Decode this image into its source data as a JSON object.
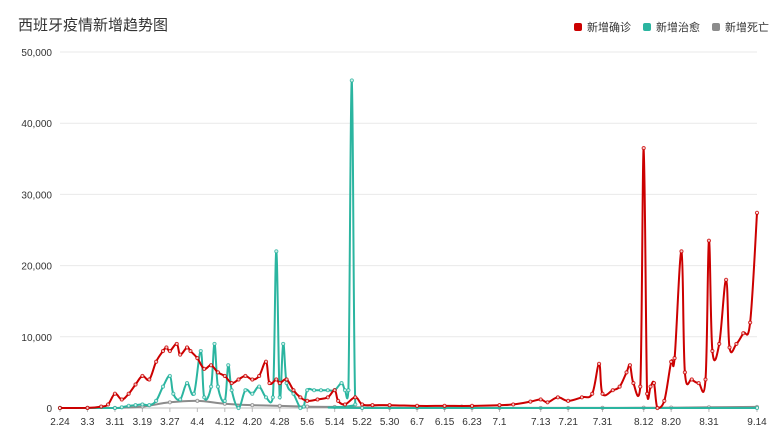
{
  "chart_data": {
    "type": "line",
    "title": "西班牙疫情新增趋势图",
    "xlabel": "",
    "ylabel": "",
    "ylim": [
      0,
      50000
    ],
    "yticks": [
      "0",
      "10,000",
      "20,000",
      "30,000",
      "40,000",
      "50,000"
    ],
    "ytick_values": [
      0,
      10000,
      20000,
      30000,
      40000,
      50000
    ],
    "xtick_labels": [
      "2.24",
      "3.3",
      "3.11",
      "3.19",
      "3.27",
      "4.4",
      "4.12",
      "4.20",
      "4.28",
      "5.6",
      "5.14",
      "5.22",
      "5.30",
      "6.7",
      "6.15",
      "6.23",
      "7.1",
      "7.13",
      "7.21",
      "7.31",
      "8.12",
      "8.20",
      "8.31",
      "9.14"
    ],
    "grid": true,
    "legend_position": "top-right",
    "series": [
      {
        "name": "新增确诊",
        "color": "#cc0000",
        "points": [
          [
            "2.24",
            0
          ],
          [
            "3.3",
            20
          ],
          [
            "3.7",
            200
          ],
          [
            "3.9",
            500
          ],
          [
            "3.11",
            2000
          ],
          [
            "3.13",
            1200
          ],
          [
            "3.15",
            2000
          ],
          [
            "3.17",
            3300
          ],
          [
            "3.19",
            4500
          ],
          [
            "3.21",
            4000
          ],
          [
            "3.23",
            6500
          ],
          [
            "3.25",
            8000
          ],
          [
            "3.26",
            8500
          ],
          [
            "3.27",
            8000
          ],
          [
            "3.29",
            9000
          ],
          [
            "3.30",
            7500
          ],
          [
            "4.1",
            8500
          ],
          [
            "4.2",
            8000
          ],
          [
            "4.4",
            7000
          ],
          [
            "4.6",
            5500
          ],
          [
            "4.8",
            6000
          ],
          [
            "4.10",
            5000
          ],
          [
            "4.12",
            4500
          ],
          [
            "4.14",
            3500
          ],
          [
            "4.16",
            4000
          ],
          [
            "4.18",
            4500
          ],
          [
            "4.20",
            4000
          ],
          [
            "4.22",
            4500
          ],
          [
            "4.24",
            6500
          ],
          [
            "4.25",
            3500
          ],
          [
            "4.27",
            4000
          ],
          [
            "4.28",
            3500
          ],
          [
            "4.30",
            4000
          ],
          [
            "5.2",
            2500
          ],
          [
            "5.4",
            1500
          ],
          [
            "5.6",
            1000
          ],
          [
            "5.9",
            1200
          ],
          [
            "5.12",
            1500
          ],
          [
            "5.14",
            2500
          ],
          [
            "5.15",
            1000
          ],
          [
            "5.17",
            500
          ],
          [
            "5.20",
            1500
          ],
          [
            "5.22",
            500
          ],
          [
            "5.25",
            400
          ],
          [
            "5.30",
            400
          ],
          [
            "6.7",
            300
          ],
          [
            "6.15",
            300
          ],
          [
            "6.23",
            300
          ],
          [
            "7.1",
            400
          ],
          [
            "7.5",
            500
          ],
          [
            "7.10",
            900
          ],
          [
            "7.13",
            1200
          ],
          [
            "7.15",
            800
          ],
          [
            "7.18",
            1500
          ],
          [
            "7.21",
            1000
          ],
          [
            "7.25",
            1500
          ],
          [
            "7.28",
            2000
          ],
          [
            "7.30",
            6200
          ],
          [
            "7.31",
            2000
          ],
          [
            "8.3",
            2500
          ],
          [
            "8.5",
            3000
          ],
          [
            "8.7",
            5000
          ],
          [
            "8.8",
            6000
          ],
          [
            "8.9",
            3500
          ],
          [
            "8.11",
            3000
          ],
          [
            "8.12",
            36500
          ],
          [
            "8.13",
            2000
          ],
          [
            "8.14",
            3000
          ],
          [
            "8.15",
            3500
          ],
          [
            "8.16",
            0
          ],
          [
            "8.18",
            1000
          ],
          [
            "8.20",
            6500
          ],
          [
            "8.21",
            7000
          ],
          [
            "8.23",
            22000
          ],
          [
            "8.24",
            5000
          ],
          [
            "8.26",
            4000
          ],
          [
            "8.28",
            3500
          ],
          [
            "8.30",
            4000
          ],
          [
            "8.31",
            23500
          ],
          [
            "9.1",
            8000
          ],
          [
            "9.3",
            9000
          ],
          [
            "9.5",
            18000
          ],
          [
            "9.6",
            8500
          ],
          [
            "9.8",
            9000
          ],
          [
            "9.10",
            10500
          ],
          [
            "9.12",
            12000
          ],
          [
            "9.14",
            27400
          ]
        ]
      },
      {
        "name": "新增治愈",
        "color": "#2bb5a0",
        "points": [
          [
            "2.24",
            0
          ],
          [
            "3.11",
            0
          ],
          [
            "3.13",
            100
          ],
          [
            "3.15",
            300
          ],
          [
            "3.17",
            400
          ],
          [
            "3.19",
            500
          ],
          [
            "3.21",
            400
          ],
          [
            "3.23",
            1000
          ],
          [
            "3.25",
            3000
          ],
          [
            "3.27",
            4500
          ],
          [
            "3.28",
            2000
          ],
          [
            "3.30",
            1200
          ],
          [
            "4.1",
            3500
          ],
          [
            "4.3",
            2000
          ],
          [
            "4.5",
            8000
          ],
          [
            "4.6",
            1500
          ],
          [
            "4.8",
            3000
          ],
          [
            "4.9",
            9000
          ],
          [
            "4.10",
            3000
          ],
          [
            "4.12",
            1000
          ],
          [
            "4.13",
            6000
          ],
          [
            "4.14",
            2500
          ],
          [
            "4.16",
            0
          ],
          [
            "4.18",
            2500
          ],
          [
            "4.20",
            2000
          ],
          [
            "4.22",
            3000
          ],
          [
            "4.24",
            1500
          ],
          [
            "4.26",
            1500
          ],
          [
            "4.27",
            22000
          ],
          [
            "4.28",
            1500
          ],
          [
            "4.29",
            9000
          ],
          [
            "4.30",
            3500
          ],
          [
            "5.2",
            2000
          ],
          [
            "5.4",
            0
          ],
          [
            "5.5",
            200
          ],
          [
            "5.6",
            2500
          ],
          [
            "5.8",
            2500
          ],
          [
            "5.10",
            2500
          ],
          [
            "5.12",
            2500
          ],
          [
            "5.14",
            2500
          ],
          [
            "5.16",
            3500
          ],
          [
            "5.17",
            2500
          ],
          [
            "5.18",
            2500
          ],
          [
            "5.19",
            46000
          ],
          [
            "5.20",
            500
          ],
          [
            "5.22",
            0
          ],
          [
            "9.14",
            0
          ]
        ]
      },
      {
        "name": "新增死亡",
        "color": "#8c8c8c",
        "points": [
          [
            "2.24",
            0
          ],
          [
            "3.3",
            0
          ],
          [
            "3.11",
            0
          ],
          [
            "3.19",
            200
          ],
          [
            "3.27",
            800
          ],
          [
            "4.4",
            1000
          ],
          [
            "4.12",
            600
          ],
          [
            "4.20",
            400
          ],
          [
            "4.28",
            300
          ],
          [
            "5.6",
            200
          ],
          [
            "5.14",
            150
          ],
          [
            "5.22",
            80
          ],
          [
            "5.30",
            30
          ],
          [
            "6.7",
            10
          ],
          [
            "6.15",
            10
          ],
          [
            "6.20",
            200
          ],
          [
            "6.23",
            10
          ],
          [
            "7.1",
            10
          ],
          [
            "7.13",
            10
          ],
          [
            "7.21",
            10
          ],
          [
            "7.31",
            20
          ],
          [
            "8.12",
            30
          ],
          [
            "8.20",
            50
          ],
          [
            "8.31",
            100
          ],
          [
            "9.14",
            150
          ]
        ]
      }
    ]
  }
}
